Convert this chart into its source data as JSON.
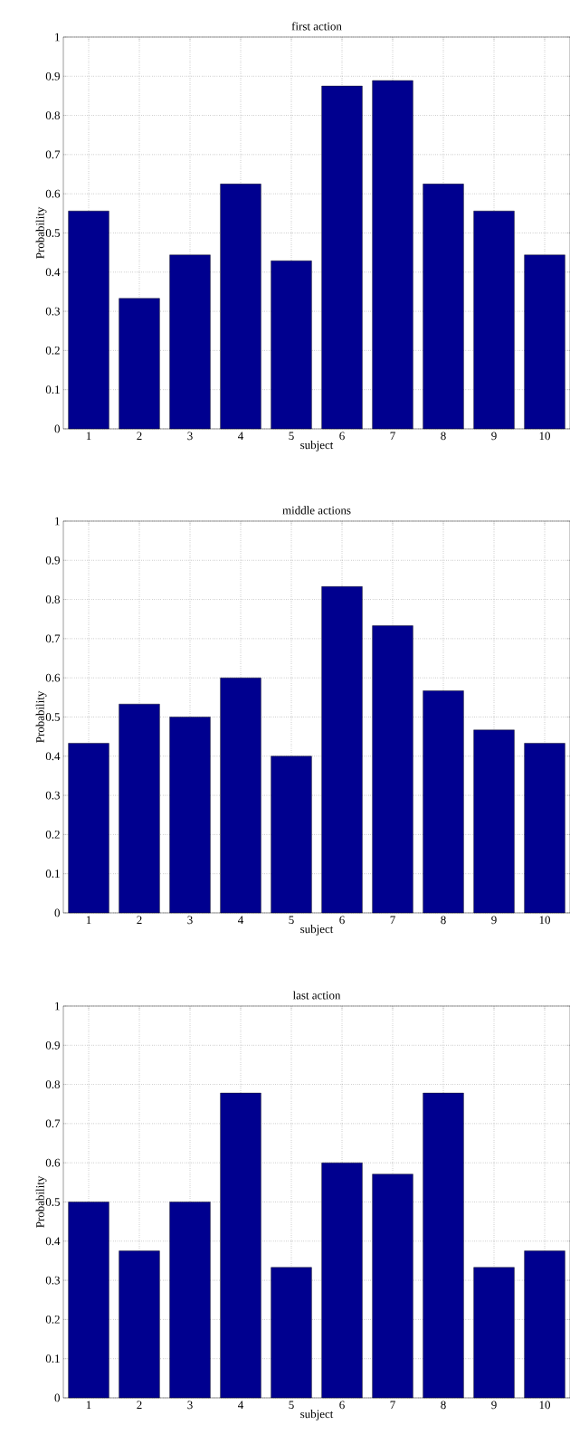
{
  "chart_data": [
    {
      "type": "bar",
      "title": "first action",
      "xlabel": "subject",
      "ylabel": "Probability",
      "categories": [
        "1",
        "2",
        "3",
        "4",
        "5",
        "6",
        "7",
        "8",
        "9",
        "10"
      ],
      "values": [
        0.556,
        0.333,
        0.444,
        0.625,
        0.429,
        0.875,
        0.889,
        0.625,
        0.556,
        0.444
      ],
      "color": "#00008f",
      "ylim": [
        0,
        1
      ],
      "yticks": [
        0,
        0.1,
        0.2,
        0.3,
        0.4,
        0.5,
        0.6,
        0.7,
        0.8,
        0.9,
        1
      ],
      "grid": true
    },
    {
      "type": "bar",
      "title": "middle actions",
      "xlabel": "subject",
      "ylabel": "Probability",
      "categories": [
        "1",
        "2",
        "3",
        "4",
        "5",
        "6",
        "7",
        "8",
        "9",
        "10"
      ],
      "values": [
        0.433,
        0.533,
        0.5,
        0.6,
        0.4,
        0.833,
        0.733,
        0.567,
        0.467,
        0.433
      ],
      "color": "#00008f",
      "ylim": [
        0,
        1
      ],
      "yticks": [
        0,
        0.1,
        0.2,
        0.3,
        0.4,
        0.5,
        0.6,
        0.7,
        0.8,
        0.9,
        1
      ],
      "grid": true
    },
    {
      "type": "bar",
      "title": "last action",
      "xlabel": "subject",
      "ylabel": "Probability",
      "categories": [
        "1",
        "2",
        "3",
        "4",
        "5",
        "6",
        "7",
        "8",
        "9",
        "10"
      ],
      "values": [
        0.5,
        0.375,
        0.5,
        0.778,
        0.333,
        0.6,
        0.571,
        0.778,
        0.333,
        0.375
      ],
      "color": "#00008f",
      "ylim": [
        0,
        1
      ],
      "yticks": [
        0,
        0.1,
        0.2,
        0.3,
        0.4,
        0.5,
        0.6,
        0.7,
        0.8,
        0.9,
        1
      ],
      "grid": true
    }
  ]
}
